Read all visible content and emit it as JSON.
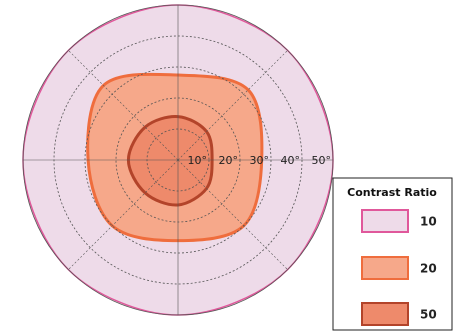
{
  "chart_data": {
    "type": "polar-contour",
    "angles": [
      0,
      45,
      90,
      135,
      180,
      225,
      270,
      315
    ],
    "rlim": [
      0,
      50
    ],
    "rticks": [
      {
        "value": 10,
        "label": "10°"
      },
      {
        "value": 20,
        "label": "20°"
      },
      {
        "value": 30,
        "label": "30°"
      },
      {
        "value": 40,
        "label": "40°"
      },
      {
        "value": 50,
        "label": "50°"
      }
    ],
    "grid": true,
    "legend_title": "Contrast Ratio",
    "legend": "lower-right",
    "series": [
      {
        "name": "10",
        "color": "#eedbe9",
        "edge": "#e0589b",
        "values": [
          50,
          50,
          50,
          50,
          50,
          50,
          50,
          50
        ]
      },
      {
        "name": "20",
        "color": "#f6a88a",
        "edge": "#ef6d3d",
        "values": [
          27,
          32,
          27.4,
          34,
          29,
          30,
          26,
          30
        ]
      },
      {
        "name": "50",
        "color": "#ee8a6b",
        "edge": "#b3442a",
        "values": [
          11,
          13,
          14,
          15,
          16,
          15,
          14.5,
          13
        ]
      }
    ]
  }
}
